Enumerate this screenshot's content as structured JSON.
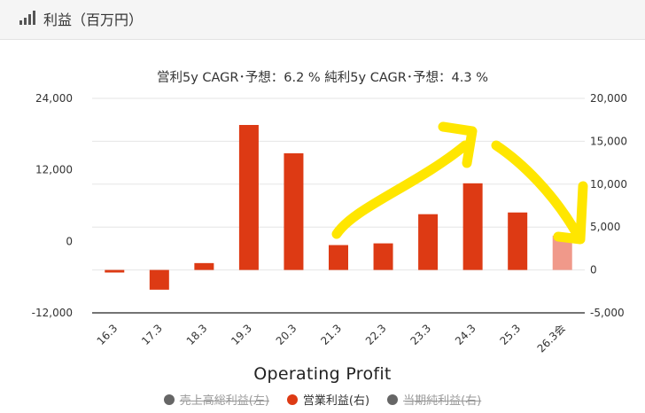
{
  "header": {
    "title": "利益（百万円）",
    "icon": "signal-bars-icon"
  },
  "chart_data": {
    "type": "bar",
    "subtitle": "営利5y CAGR･予想：6.2 %  純利5y CAGR･予想：4.3 %",
    "xlabel": "Operating Profit",
    "categories": [
      "16.3",
      "17.3",
      "18.3",
      "19.3",
      "20.3",
      "21.3",
      "22.3",
      "23.3",
      "24.3",
      "25.3",
      "26.3会"
    ],
    "left_axis": {
      "ticks": [
        "24,000",
        "12,000",
        "0",
        "-12,000"
      ],
      "ylim": [
        -12000,
        24000
      ]
    },
    "right_axis": {
      "ticks": [
        "20,000",
        "15,000",
        "10,000",
        "5,000",
        "0",
        "-5,000"
      ],
      "ylim": [
        -5000,
        20000
      ]
    },
    "series": [
      {
        "name": "営業利益(右)",
        "color": "#dd3a14",
        "forecast_color": "#f0998a",
        "values": [
          -300,
          -2300,
          800,
          16900,
          13600,
          2900,
          3100,
          6500,
          10100,
          6700,
          4000
        ],
        "forecast_index": 10
      }
    ],
    "legend": [
      {
        "label": "売上高総利益(左)",
        "color": "#666666",
        "struck": true
      },
      {
        "label": "営業利益(右)",
        "color": "#dd3a14",
        "struck": false
      },
      {
        "label": "当期純利益(右)",
        "color": "#666666",
        "struck": true
      }
    ],
    "annotations": {
      "arrow_color": "#ffe600"
    }
  }
}
